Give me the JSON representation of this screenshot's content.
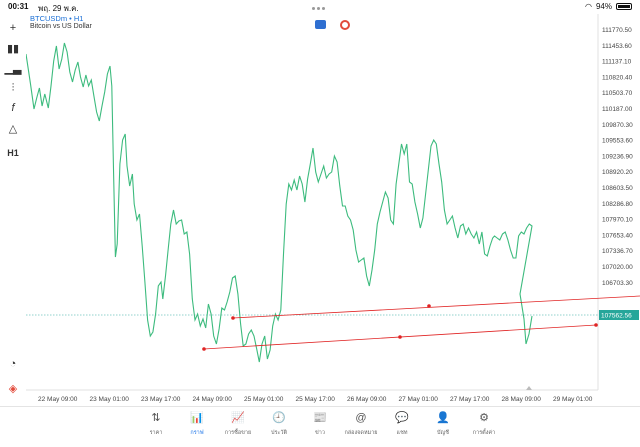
{
  "status": {
    "time": "00:31",
    "date": "พฤ. 29 พ.ค.",
    "battery": "94%"
  },
  "symbol": {
    "name": "BTCUSDm",
    "separator": " • ",
    "timeframe": "H1",
    "description": "Bitcoin vs US Dollar"
  },
  "toolbar": {
    "timeframe_label": "H1"
  },
  "price_axis": {
    "labels": [
      "111770.50",
      "111453.60",
      "111137.10",
      "110820.40",
      "110503.70",
      "110187.00",
      "109870.30",
      "109553.60",
      "109236.90",
      "108920.20",
      "108603.50",
      "108286.80",
      "107970.10",
      "107653.40",
      "107336.70",
      "107020.00",
      "106703.30"
    ],
    "current": "107562.56"
  },
  "time_axis": {
    "labels": [
      "22 May 09:00",
      "23 May 01:00",
      "23 May 17:00",
      "24 May 09:00",
      "25 May 01:00",
      "25 May 17:00",
      "26 May 09:00",
      "27 May 01:00",
      "27 May 17:00",
      "28 May 09:00",
      "29 May 01:00"
    ]
  },
  "colors": {
    "line": "#3dbb7e",
    "trend": "#e02424",
    "current_badge": "#26a69a",
    "accent": "#1a73e8"
  },
  "nav": [
    {
      "icon": "quotes-icon",
      "glyph": "⇅",
      "label": "ราคา"
    },
    {
      "icon": "chart-icon",
      "glyph": "📊",
      "label": "กราฟ",
      "active": true
    },
    {
      "icon": "trade-icon",
      "glyph": "📈",
      "label": "การซื้อขาย"
    },
    {
      "icon": "history-icon",
      "glyph": "🕘",
      "label": "ประวัติ"
    },
    {
      "icon": "news-icon",
      "glyph": "📰",
      "label": "ข่าว"
    },
    {
      "icon": "mailbox-icon",
      "glyph": "@",
      "label": "กล่องจดหมาย"
    },
    {
      "icon": "chat-icon",
      "glyph": "💬",
      "label": "แชท"
    },
    {
      "icon": "account-icon",
      "glyph": "👤",
      "label": "บัญชี"
    },
    {
      "icon": "settings-icon",
      "glyph": "⚙",
      "label": "การตั้งค่า"
    }
  ]
}
